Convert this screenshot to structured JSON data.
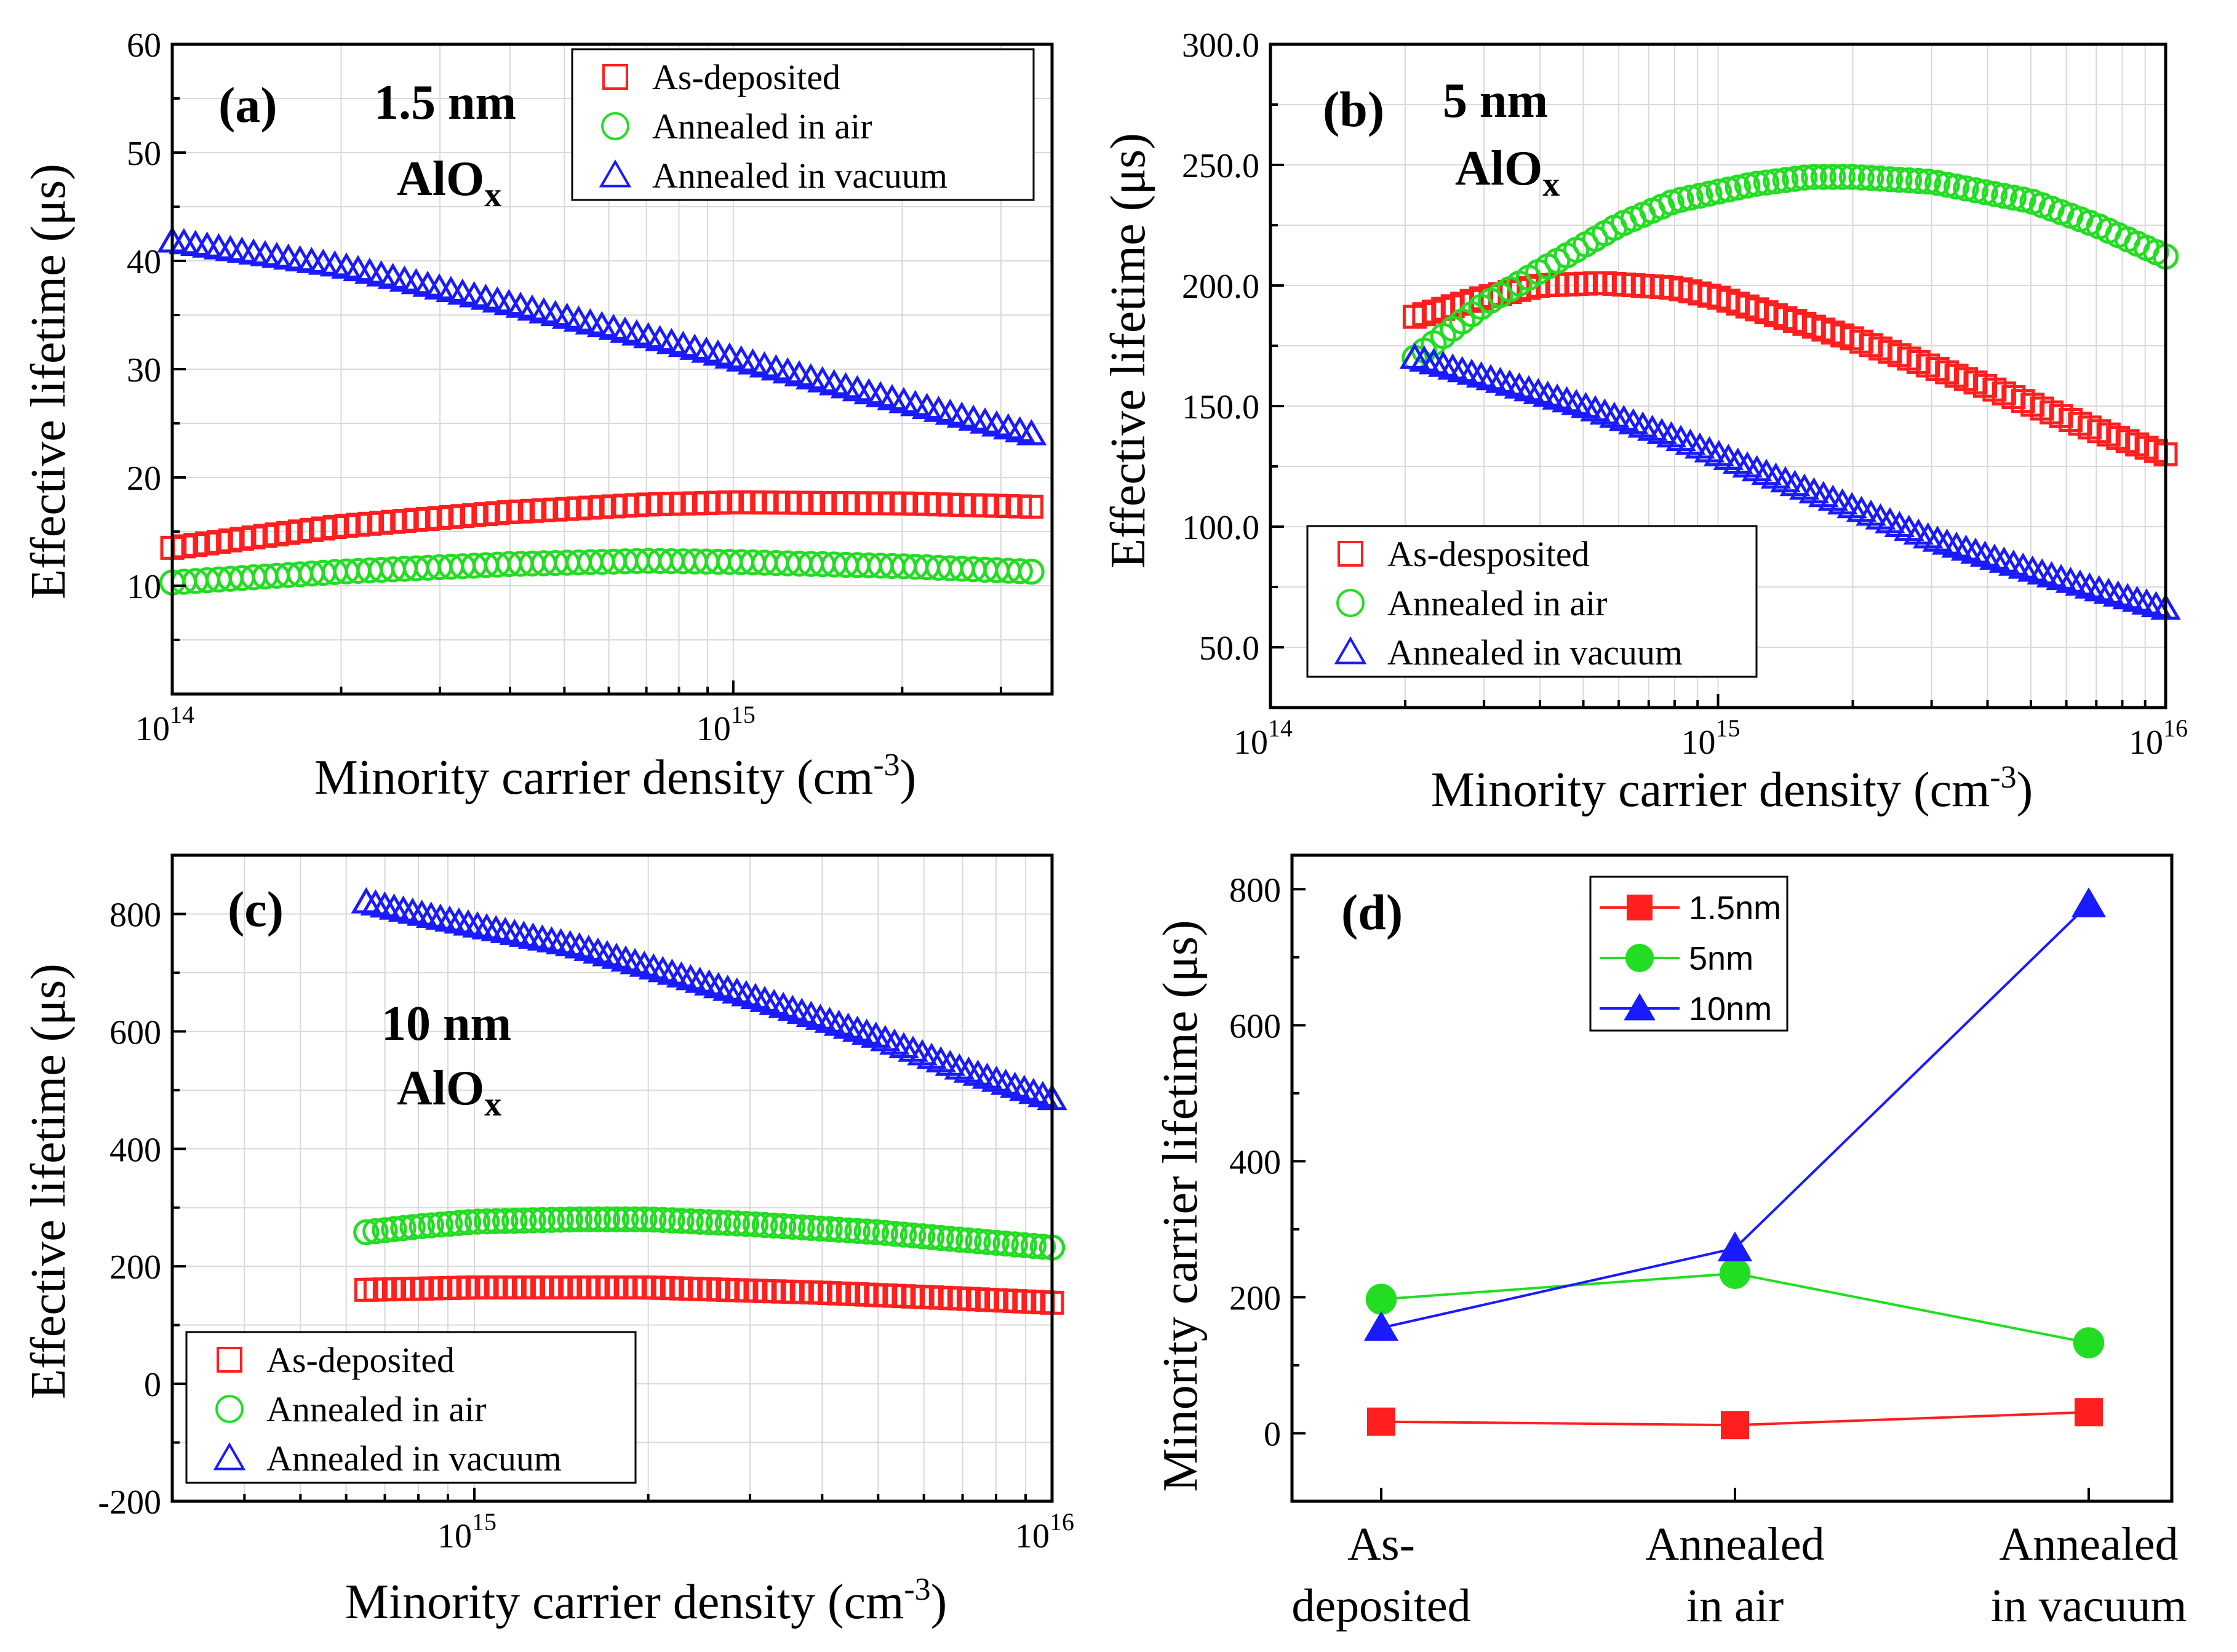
{
  "colors": {
    "red": "#ff1f1f",
    "green": "#22dd22",
    "blue": "#1a1aff",
    "grid": "#d9d9d9",
    "axis": "#000000"
  },
  "chart_data": [
    {
      "panel": "(a)",
      "type": "scatter",
      "annotation": [
        "1.5 nm",
        "AlO",
        "x"
      ],
      "xlabel": "Minority carrier density (cm-3)",
      "ylabel": "Effective lifetime (μs)",
      "xscale": "log",
      "xlim": [
        100000000000000.0,
        3700000000000000.0
      ],
      "ylim": [
        0,
        60
      ],
      "yticks": [
        10,
        20,
        30,
        40,
        50,
        60
      ],
      "xticks": [
        {
          "base": "10",
          "exp": "14",
          "value": 100000000000000.0
        },
        {
          "base": "10",
          "exp": "15",
          "value": 1000000000000000.0
        }
      ],
      "legend_position": "top-right",
      "series": [
        {
          "name": "As-deposited",
          "marker": "square",
          "color": "#ff1f1f",
          "x": [
            100000000000000.0,
            200000000000000.0,
            400000000000000.0,
            700000000000000.0,
            1000000000000000.0,
            2000000000000000.0,
            3400000000000000.0
          ],
          "y": [
            13.5,
            15.5,
            16.8,
            17.5,
            17.7,
            17.6,
            17.3
          ]
        },
        {
          "name": "Annealed in air",
          "marker": "circle",
          "color": "#22dd22",
          "x": [
            100000000000000.0,
            200000000000000.0,
            400000000000000.0,
            700000000000000.0,
            1000000000000000.0,
            2000000000000000.0,
            3400000000000000.0
          ],
          "y": [
            10.3,
            11.3,
            12.0,
            12.3,
            12.2,
            11.8,
            11.3
          ]
        },
        {
          "name": "Annealed in vacuum",
          "marker": "triangle",
          "color": "#1a1aff",
          "x": [
            100000000000000.0,
            200000000000000.0,
            400000000000000.0,
            700000000000000.0,
            1000000000000000.0,
            2000000000000000.0,
            3400000000000000.0
          ],
          "y": [
            41.8,
            39.5,
            36.0,
            33.0,
            31.0,
            27.0,
            24.0
          ]
        }
      ]
    },
    {
      "panel": "(b)",
      "type": "scatter",
      "annotation": [
        "5 nm",
        "AlO",
        "x"
      ],
      "xlabel": "Minority carrier density (cm-3)",
      "ylabel": "Effective lifetime (μs)",
      "xscale": "log",
      "xlim": [
        100000000000000.0,
        1e+16
      ],
      "ylim": [
        25,
        300
      ],
      "yticks": [
        "50.0",
        "100.0",
        "150.0",
        "200.0",
        "250.0",
        "300.0"
      ],
      "xticks": [
        {
          "base": "10",
          "exp": "14",
          "value": 100000000000000.0
        },
        {
          "base": "10",
          "exp": "15",
          "value": 1000000000000000.0
        },
        {
          "base": "10",
          "exp": "16",
          "value": 1e+16
        }
      ],
      "legend_position": "bottom-left",
      "series": [
        {
          "name": "As-desposited",
          "marker": "square",
          "color": "#ff1f1f",
          "x": [
            210000000000000.0,
            300000000000000.0,
            400000000000000.0,
            550000000000000.0,
            800000000000000.0,
            1000000000000000.0,
            2000000000000000.0,
            4000000000000000.0,
            7000000000000000.0,
            1e+16
          ],
          "y": [
            187,
            195,
            200,
            201,
            199,
            195,
            178,
            158,
            140,
            130
          ]
        },
        {
          "name": "Annealed in air",
          "marker": "circle",
          "color": "#22dd22",
          "x": [
            210000000000000.0,
            300000000000000.0,
            400000000000000.0,
            600000000000000.0,
            800000000000000.0,
            1200000000000000.0,
            1600000000000000.0,
            2000000000000000.0,
            3000000000000000.0,
            5000000000000000.0,
            7000000000000000.0,
            1e+16
          ],
          "y": [
            170,
            192,
            206,
            225,
            235,
            242,
            245,
            245,
            243,
            235,
            225,
            212
          ]
        },
        {
          "name": "Annealed in vacuum",
          "marker": "triangle",
          "color": "#1a1aff",
          "x": [
            210000000000000.0,
            300000000000000.0,
            500000000000000.0,
            800000000000000.0,
            1200000000000000.0,
            2000000000000000.0,
            3000000000000000.0,
            5000000000000000.0,
            7000000000000000.0,
            1e+16
          ],
          "y": [
            170,
            162,
            150,
            137,
            124,
            108,
            95,
            82,
            74,
            66
          ]
        }
      ]
    },
    {
      "panel": "(c)",
      "type": "scatter",
      "annotation": [
        "10 nm",
        "AlO",
        "x"
      ],
      "xlabel": "Minority carrier density (cm-3)",
      "ylabel": "Effective lifetime (μs)",
      "xscale": "log",
      "xlim": [
        300000000000000.0,
        1e+16
      ],
      "ylim": [
        -200,
        900
      ],
      "yticks": [
        "-200",
        "0",
        "200",
        "400",
        "600",
        "800"
      ],
      "xticks": [
        {
          "base": "10",
          "exp": "15",
          "value": 1000000000000000.0
        },
        {
          "base": "10",
          "exp": "16",
          "value": 1e+16
        }
      ],
      "legend_position": "bottom-left",
      "series": [
        {
          "name": "As-deposited",
          "marker": "square",
          "color": "#ff1f1f",
          "x": [
            650000000000000.0,
            1000000000000000.0,
            2000000000000000.0,
            4000000000000000.0,
            7000000000000000.0,
            1e+16
          ],
          "y": [
            160,
            164,
            164,
            155,
            145,
            138
          ]
        },
        {
          "name": "Annealed in air",
          "marker": "circle",
          "color": "#22dd22",
          "x": [
            650000000000000.0,
            800000000000000.0,
            1000000000000000.0,
            1500000000000000.0,
            2000000000000000.0,
            3000000000000000.0,
            5000000000000000.0,
            7000000000000000.0,
            1e+16
          ],
          "y": [
            258,
            268,
            276,
            280,
            280,
            272,
            258,
            245,
            232
          ]
        },
        {
          "name": "Annealed in vacuum",
          "marker": "triangle",
          "color": "#1a1aff",
          "x": [
            650000000000000.0,
            800000000000000.0,
            1000000000000000.0,
            1500000000000000.0,
            2000000000000000.0,
            3000000000000000.0,
            5000000000000000.0,
            7000000000000000.0,
            1e+16
          ],
          "y": [
            820,
            800,
            780,
            745,
            710,
            660,
            590,
            535,
            485
          ]
        }
      ]
    },
    {
      "panel": "(d)",
      "type": "line",
      "categories": [
        [
          "As-",
          "deposited"
        ],
        [
          "Annealed",
          "in air"
        ],
        [
          "Annealed",
          "in vacuum"
        ]
      ],
      "xlabel": "",
      "ylabel": "Minority carrier lifetime (μs)",
      "ylim": [
        -100,
        850
      ],
      "yticks": [
        "0",
        "200",
        "400",
        "600",
        "800"
      ],
      "legend_position": "top-center",
      "series": [
        {
          "name": "1.5nm",
          "marker": "square",
          "color": "#ff1f1f",
          "values": [
            17,
            12,
            31
          ]
        },
        {
          "name": "5nm",
          "marker": "circle",
          "color": "#22dd22",
          "values": [
            197,
            235,
            133
          ]
        },
        {
          "name": "10nm",
          "marker": "triangle",
          "color": "#1a1aff",
          "values": [
            155,
            272,
            778
          ]
        }
      ]
    }
  ]
}
